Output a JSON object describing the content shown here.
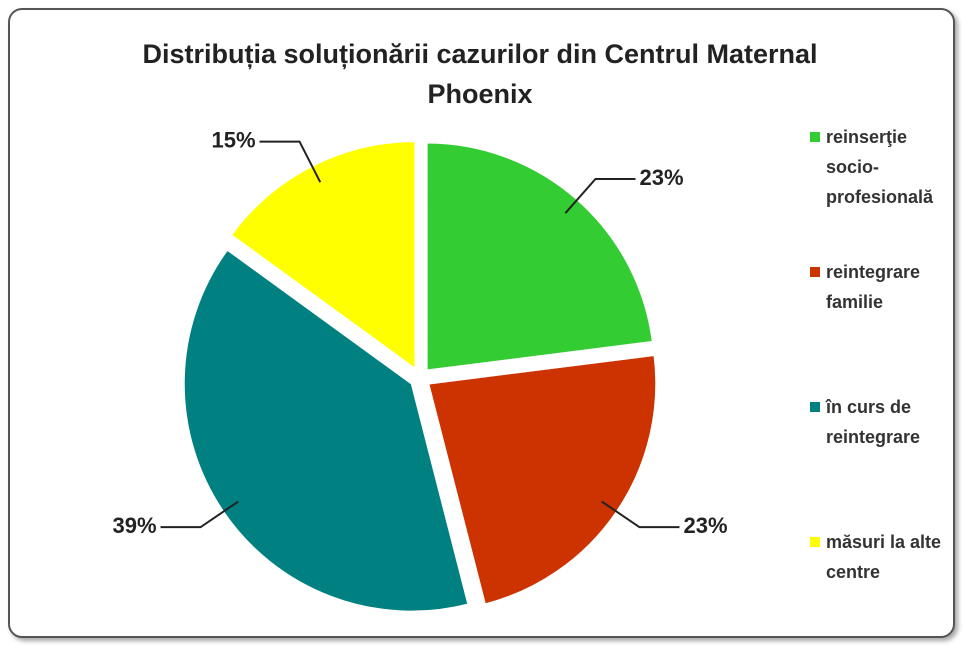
{
  "chart_data": {
    "type": "pie",
    "title": "Distribuția soluționării cazurilor din Centrul Maternal Phoenix",
    "categories": [
      "reinserţie socio-profesională",
      "reintegrare familie",
      "în curs de reintegrare",
      "măsuri la alte centre"
    ],
    "values": [
      23,
      23,
      39,
      15
    ],
    "value_labels": [
      "23%",
      "23%",
      "39%",
      "15%"
    ],
    "colors": [
      "#33cc33",
      "#cc3300",
      "#008080",
      "#ffff00"
    ],
    "legend": "right"
  }
}
